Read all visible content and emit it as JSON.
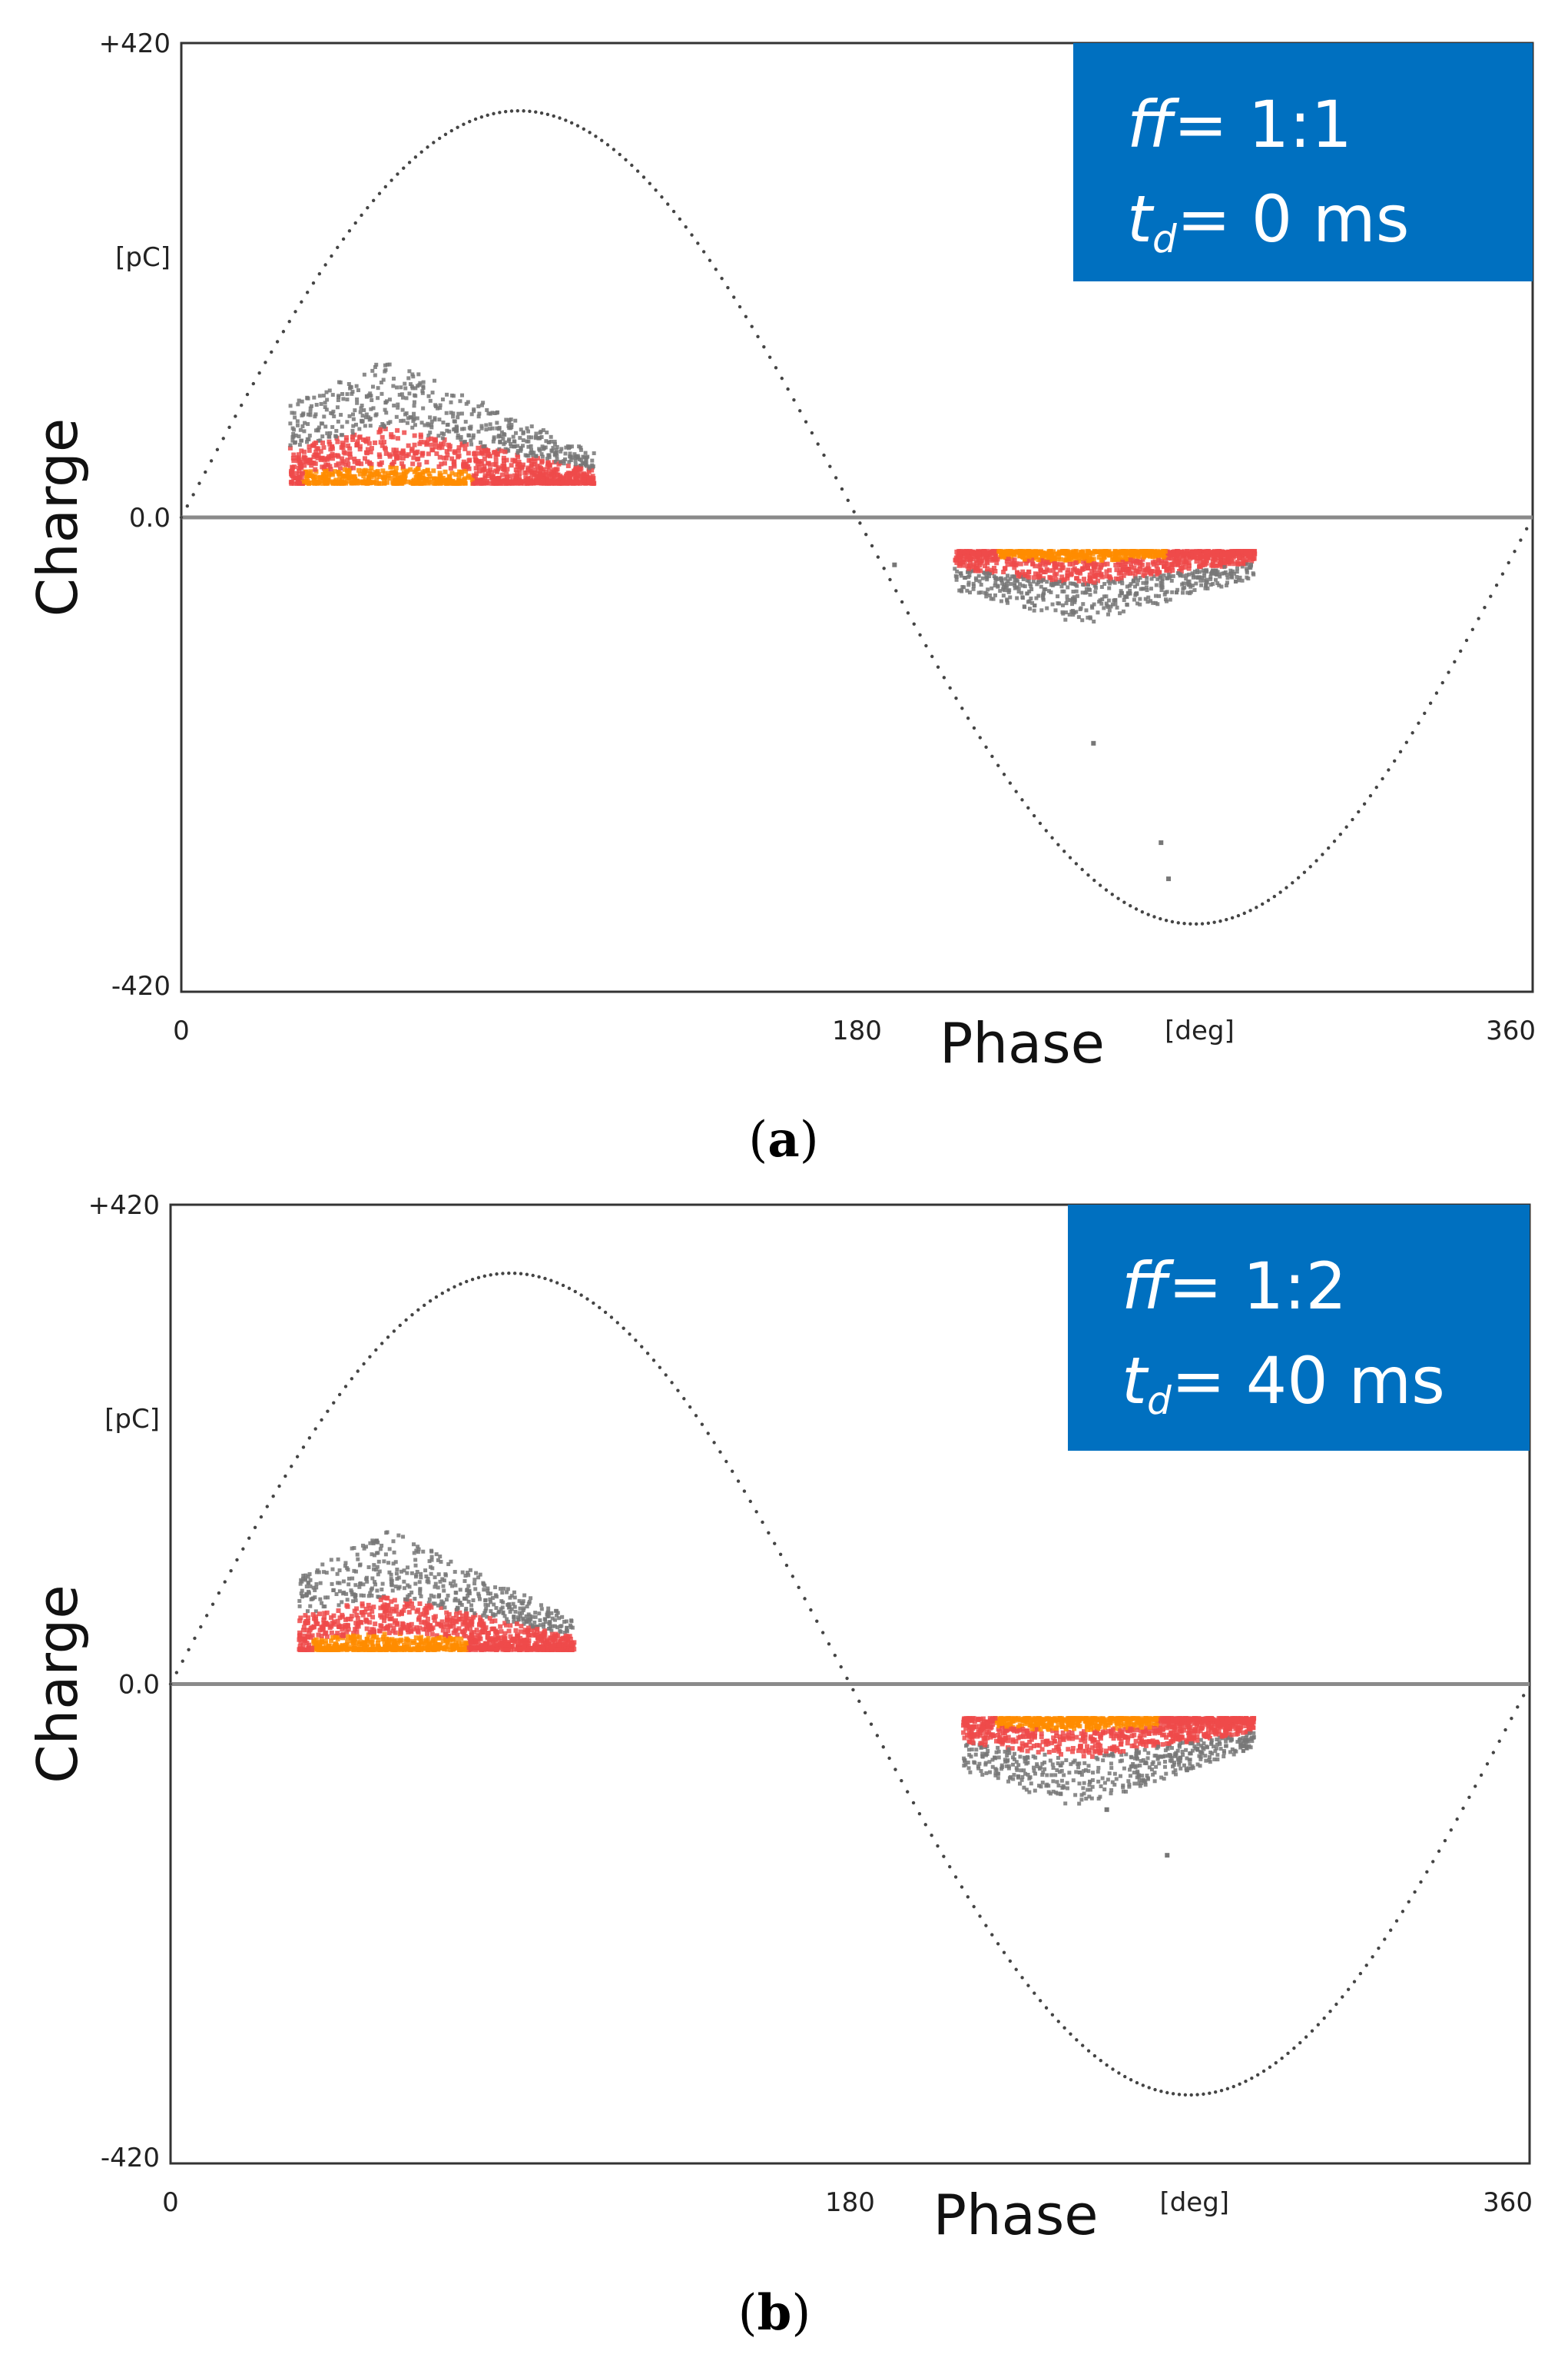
{
  "colors": {
    "legend_box": "#0070c0",
    "waveform": "#444444",
    "zero_line": "#8a8a8a",
    "pd_low": "#777777",
    "pd_mid": "#ef4a4a",
    "pd_high": "#ff8c00"
  },
  "chart_data": [
    {
      "type": "scatter",
      "panel_label": "a",
      "caption_open": "(",
      "caption_close": ")",
      "title": "",
      "xlabel": "Phase",
      "x_unit": "[deg]",
      "ylabel": "Charge",
      "y_unit": "[pC]",
      "xlim": [
        0,
        360
      ],
      "ylim": [
        -420,
        420
      ],
      "x_ticks": [
        "0",
        "180",
        "360"
      ],
      "y_ticks": [
        "+420",
        "0.0",
        "-420"
      ],
      "legend": {
        "placement": "top-right",
        "ff_symbol": "ff",
        "ff_value": "= 1:1",
        "td_symbol": "t",
        "td_subscript": "d",
        "td_value": "= 0 ms"
      },
      "series": [
        {
          "name": "test voltage (sine)",
          "kind": "line",
          "amplitude_pc": 360,
          "phase_range": [
            0,
            360
          ]
        },
        {
          "name": "positive PD cluster",
          "kind": "density",
          "phase_range": [
            29,
            110
          ],
          "charge_range": [
            30,
            140
          ],
          "peak_phase": 55,
          "peak_charge": 42
        },
        {
          "name": "negative PD cluster",
          "kind": "density",
          "phase_range": [
            206,
            286
          ],
          "charge_range": [
            -95,
            -30
          ],
          "peak_phase": 240,
          "peak_charge": -40
        }
      ],
      "outliers": [
        {
          "x": 243,
          "y": -200
        },
        {
          "x": 261,
          "y": -288
        },
        {
          "x": 263,
          "y": -320
        },
        {
          "x": 190,
          "y": -42
        }
      ]
    },
    {
      "type": "scatter",
      "panel_label": "b",
      "caption_open": "(",
      "caption_close": ")",
      "title": "",
      "xlabel": "Phase",
      "x_unit": "[deg]",
      "ylabel": "Charge",
      "y_unit": "[pC]",
      "xlim": [
        0,
        360
      ],
      "ylim": [
        -420,
        420
      ],
      "x_ticks": [
        "0",
        "180",
        "360"
      ],
      "y_ticks": [
        "+420",
        "0.0",
        "-420"
      ],
      "legend": {
        "placement": "top-right",
        "ff_symbol": "ff",
        "ff_value": "= 1:2",
        "td_symbol": "t",
        "td_subscript": "d",
        "td_value": "= 40 ms"
      },
      "series": [
        {
          "name": "test voltage (sine)",
          "kind": "line",
          "amplitude_pc": 360,
          "phase_range": [
            0,
            360
          ]
        },
        {
          "name": "positive PD cluster",
          "kind": "density",
          "phase_range": [
            34,
            107
          ],
          "charge_range": [
            30,
            135
          ],
          "peak_phase": 58,
          "peak_charge": 48
        },
        {
          "name": "negative PD cluster",
          "kind": "density",
          "phase_range": [
            210,
            287
          ],
          "charge_range": [
            -110,
            -30
          ],
          "peak_phase": 240,
          "peak_charge": -42
        }
      ],
      "outliers": [
        {
          "x": 248,
          "y": -110
        },
        {
          "x": 264,
          "y": -150
        }
      ]
    }
  ]
}
